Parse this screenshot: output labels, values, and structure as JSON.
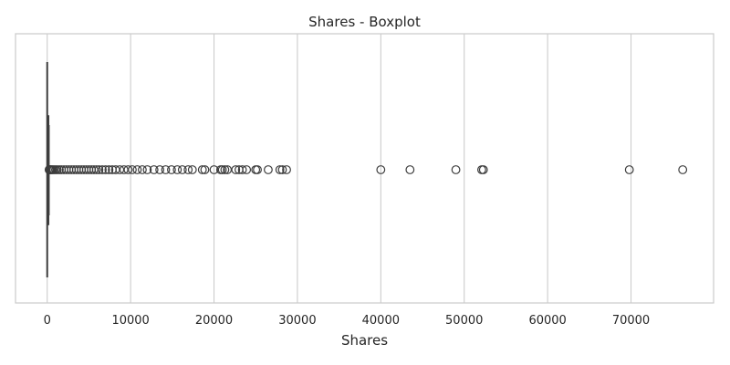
{
  "chart_data": {
    "type": "boxplot",
    "title": "Shares - Boxplot",
    "xlabel": "Shares",
    "ylabel": "",
    "orientation": "horizontal",
    "xlim": [
      -3800,
      79900
    ],
    "xticks": [
      0,
      10000,
      20000,
      30000,
      40000,
      50000,
      60000,
      70000
    ],
    "grid": "x",
    "box": {
      "min": 1,
      "q1": 6,
      "median": 20,
      "q3": 90,
      "whisker_high": 215
    },
    "outliers": [
      230,
      280,
      340,
      420,
      520,
      650,
      800,
      1000,
      1200,
      1450,
      1700,
      2000,
      2300,
      2600,
      2900,
      3200,
      3500,
      3800,
      4100,
      4400,
      4700,
      5000,
      5300,
      5600,
      5900,
      6200,
      6600,
      7000,
      7400,
      7800,
      8200,
      8700,
      9200,
      9700,
      10200,
      10800,
      11400,
      12000,
      12800,
      13500,
      14200,
      14900,
      15600,
      16200,
      16900,
      17400,
      18600,
      18900,
      20000,
      20800,
      21000,
      21300,
      21600,
      22600,
      23000,
      23400,
      23900,
      25000,
      25200,
      26500,
      27900,
      28200,
      28700,
      40000,
      43500,
      49000,
      52100,
      52300,
      69800,
      76200
    ],
    "colors": {
      "box_edge": "#3d3d3d",
      "grid": "#cccccc",
      "frame": "#cccccc",
      "text": "#262626"
    }
  }
}
